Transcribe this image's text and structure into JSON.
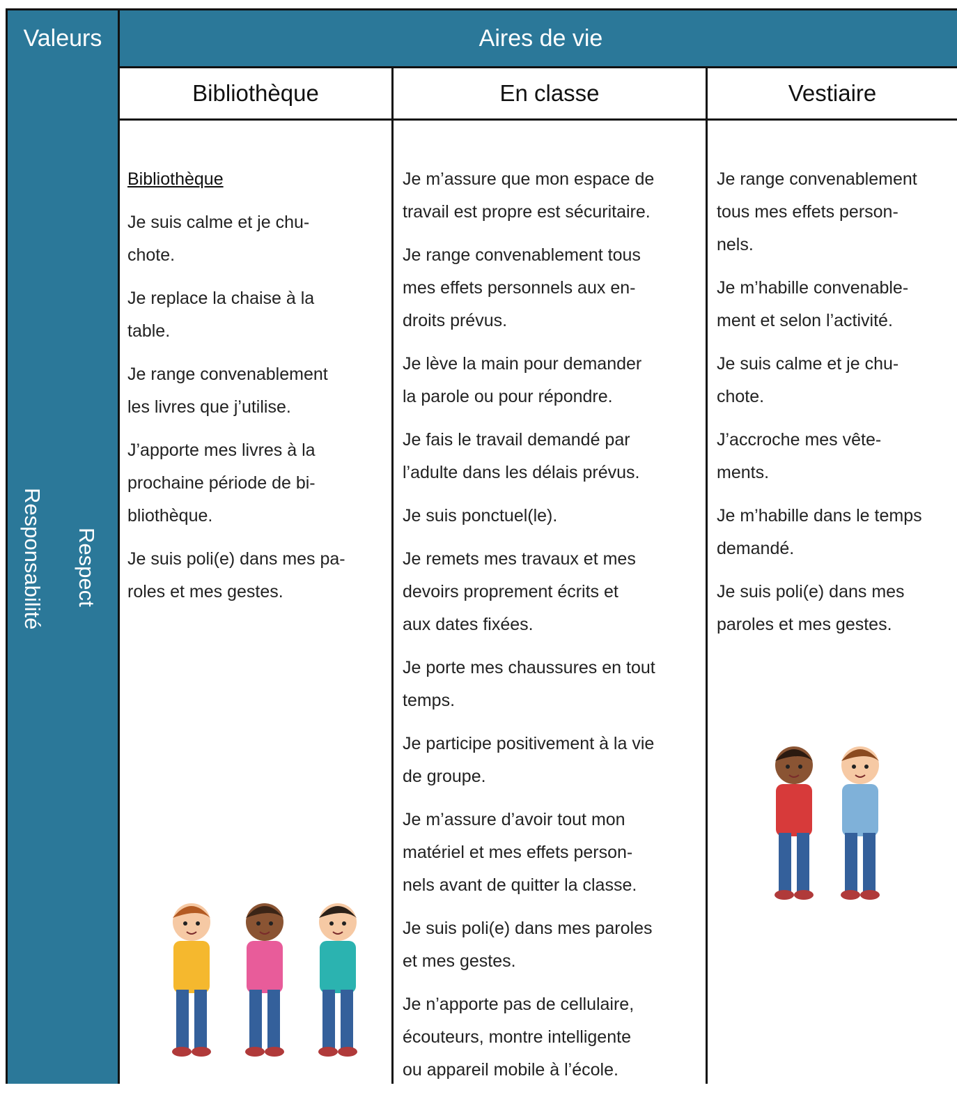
{
  "header": {
    "values_label": "Valeurs",
    "areas_label": "Aires de vie"
  },
  "side_labels": [
    "Responsabilité",
    "Respect"
  ],
  "columns": [
    {
      "title": "Bibliothèque",
      "heading": "Bibliothèque",
      "items": [
        "Je suis calme et je chu-\nchote.",
        "Je replace la chaise à la\ntable.",
        "Je range convenablement\nles livres que j’utilise.",
        "J’apporte mes livres à la\nprochaine période de bi-\nbliothèque.",
        "Je suis poli(e) dans mes pa-\nroles et mes gestes."
      ]
    },
    {
      "title": "En classe",
      "items": [
        "Je m’assure que mon espace de\ntravail est propre est sécuritaire.",
        "Je range convenablement tous\nmes effets personnels aux en-\ndroits prévus.",
        "Je lève la main pour demander\nla parole ou pour répondre.",
        "Je fais le travail demandé par\nl’adulte dans les délais prévus.",
        "Je suis ponctuel(le).",
        "Je remets mes travaux et mes\ndevoirs proprement écrits et\naux dates fixées.",
        "Je porte mes chaussures en tout\ntemps.",
        "Je participe positivement à la vie\nde groupe.",
        "Je m’assure d’avoir tout mon\nmatériel et mes effets person-\nnels avant de quitter la classe.",
        "Je suis poli(e) dans mes paroles\net mes gestes.",
        "Je n’apporte pas de cellulaire,\nécouteurs, montre intelligente\nou appareil mobile à l’école."
      ]
    },
    {
      "title": "Vestiaire",
      "items": [
        "Je range convenablement\ntous mes effets person-\nnels.",
        "Je m’habille convenable-\nment et selon l’activité.",
        "Je suis calme et je chu-\nchote.",
        "J’accroche mes vête-\nments.",
        "Je m’habille dans le temps\ndemandé.",
        "Je suis poli(e) dans mes\nparoles et mes gestes."
      ]
    }
  ]
}
